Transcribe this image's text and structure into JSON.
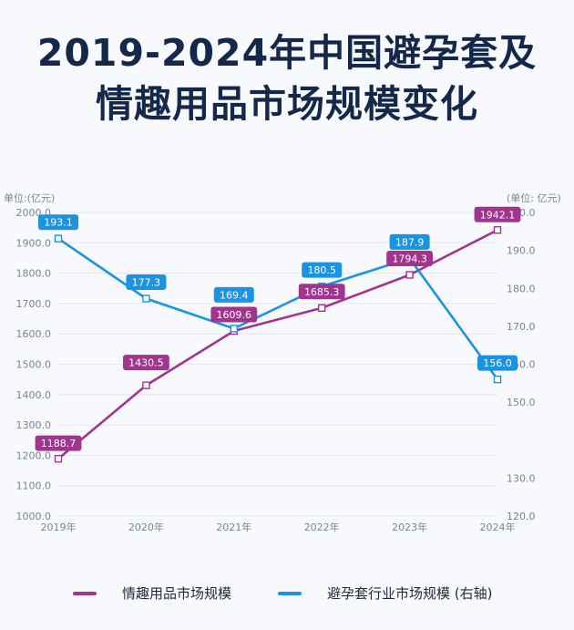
{
  "title_lines": [
    "2019-2024年中国避孕套及",
    "情趣用品市场规模变化"
  ],
  "colors": {
    "left_series": "#a0348f",
    "right_series": "#1a93e3",
    "title": "#13284a",
    "axis_text": "#7a8494"
  },
  "chart_data": {
    "type": "line",
    "x": [
      "2019年",
      "2020年",
      "2021年",
      "2022年",
      "2023年",
      "2024年"
    ],
    "left_axis": {
      "unit_label": "单位:(亿元)",
      "range": [
        1000.0,
        2000.0
      ],
      "ticks": [
        "1000.0",
        "1100.0",
        "1200.0",
        "1300.0",
        "1400.0",
        "1500.0",
        "1600.0",
        "1700.0",
        "1800.0",
        "1900.0",
        "2000.0"
      ]
    },
    "right_axis": {
      "unit_label": "(单位: 亿元)",
      "range": [
        120.0,
        200.0
      ],
      "ticks": [
        "120.0",
        "130.0",
        "150.0",
        "160.0",
        "170.0",
        "180.0",
        "190.0",
        "200.0"
      ],
      "tick_values": [
        120,
        130,
        150,
        160,
        170,
        180,
        190,
        200
      ]
    },
    "series": [
      {
        "name": "情趣用品市场规模",
        "axis": "left",
        "values": [
          1188.7,
          1430.5,
          1609.6,
          1685.3,
          1794.3,
          1942.1
        ],
        "labels": [
          "1188.7",
          "1430.5",
          "1609.6",
          "1685.3",
          "1794.3",
          "1942.1"
        ],
        "color": "#a0348f"
      },
      {
        "name": "避孕套行业市场规模 (右轴)",
        "axis": "right",
        "values": [
          193.1,
          177.3,
          169.4,
          180.5,
          187.9,
          156.0
        ],
        "labels": [
          "193.1",
          "177.3",
          "169.4",
          "180.5",
          "187.9",
          "156.0"
        ],
        "color": "#1a93e3"
      }
    ],
    "grid": true,
    "legend": "bottom"
  }
}
